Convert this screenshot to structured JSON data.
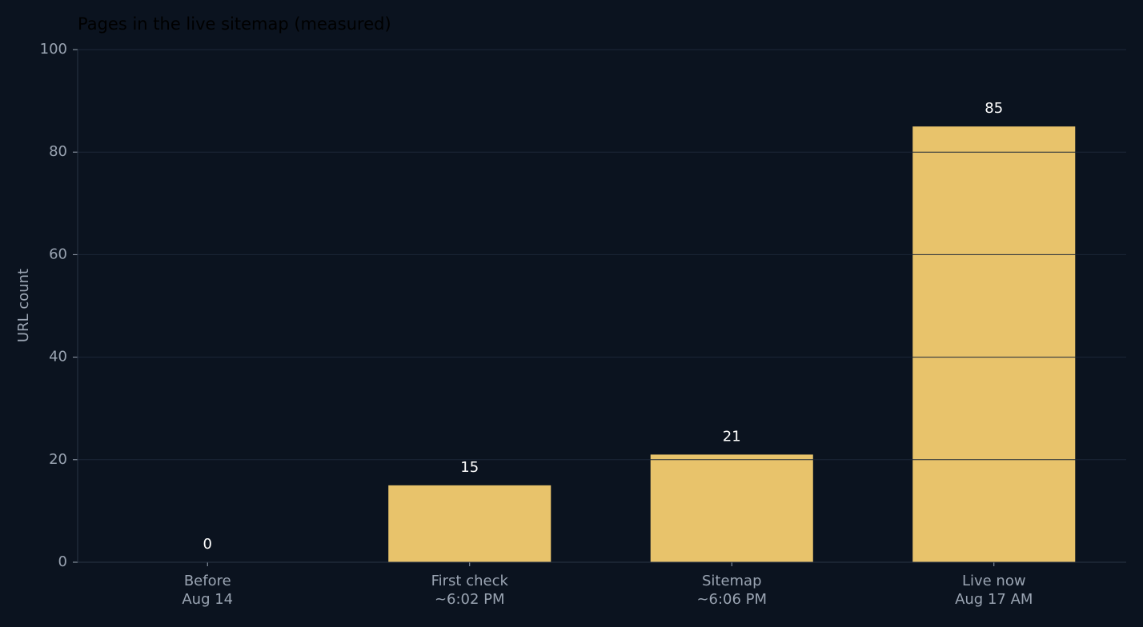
{
  "chart_data": {
    "type": "bar",
    "title": "Pages in the live sitemap (measured)",
    "y_label": "URL count",
    "categories": [
      [
        "Before",
        "Aug 14"
      ],
      [
        "First check",
        "~6:02 PM"
      ],
      [
        "Sitemap",
        "~6:06 PM"
      ],
      [
        "Live now",
        "Aug 17 AM"
      ]
    ],
    "values": [
      0,
      15,
      21,
      85
    ],
    "color": "#e8c36b",
    "ylim": [
      0,
      100
    ],
    "yticks": [
      0,
      20,
      40,
      60,
      80,
      100
    ],
    "grid": true
  }
}
